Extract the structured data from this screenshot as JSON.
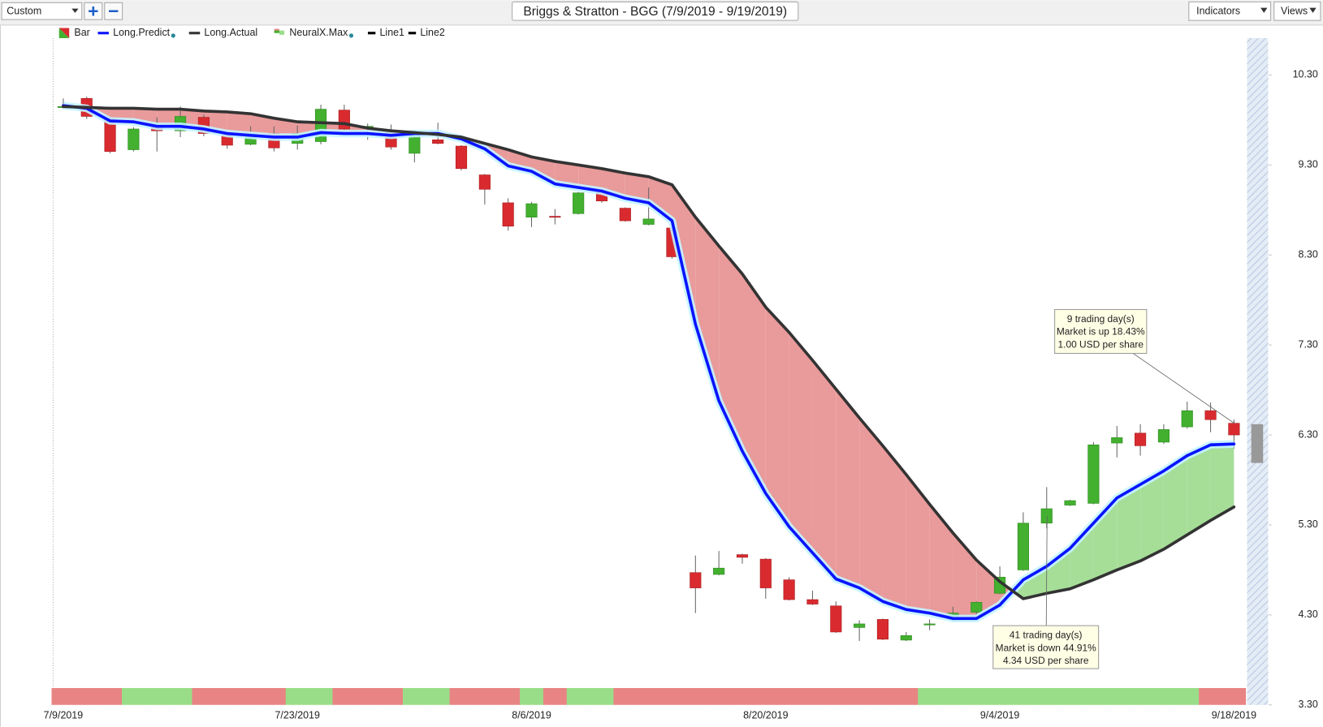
{
  "toolbar": {
    "preset": "Custom",
    "indicators": "Indicators",
    "views": "Views"
  },
  "chart_data": {
    "type": "candlestick",
    "title": "Briggs & Stratton - BGG (7/9/2019 - 9/19/2019)",
    "categories": [
      "7/9/2019",
      null,
      null,
      null,
      null,
      null,
      null,
      null,
      null,
      null,
      "7/23/2019",
      null,
      null,
      null,
      null,
      null,
      null,
      null,
      null,
      null,
      "8/6/2019",
      null,
      null,
      null,
      null,
      null,
      null,
      null,
      null,
      null,
      "8/20/2019",
      null,
      null,
      null,
      null,
      null,
      null,
      null,
      null,
      null,
      "9/4/2019",
      null,
      null,
      null,
      null,
      null,
      null,
      null,
      null,
      null,
      "9/18/2019"
    ],
    "ylim": [
      3.3,
      10.71
    ],
    "yticks": [
      {
        "value": 3.3,
        "label": "3.30"
      },
      {
        "value": 4.3,
        "label": "4.30"
      },
      {
        "value": 5.3,
        "label": "5.30"
      },
      {
        "value": 6.3,
        "label": "6.30"
      },
      {
        "value": 7.3,
        "label": "7.30"
      },
      {
        "value": 8.3,
        "label": "8.30"
      },
      {
        "value": 9.3,
        "label": "9.30"
      },
      {
        "value": 10.3,
        "label": "10.30"
      }
    ],
    "y_axis_side": "right",
    "grid": false,
    "band_fill": {
      "down": "#e99a9a",
      "up": "#a6de98"
    },
    "series": [
      {
        "name": "Bar",
        "type": "candlestick",
        "up_color": "#43b02f",
        "down_color": "#d92b2f",
        "open": [
          9.95,
          10.04,
          9.82,
          9.47,
          9.73,
          9.68,
          9.83,
          9.63,
          9.53,
          9.65,
          9.54,
          9.56,
          9.91,
          9.71,
          9.68,
          9.43,
          9.58,
          9.51,
          9.19,
          8.88,
          8.72,
          8.73,
          8.76,
          9.0,
          8.82,
          8.64,
          8.6,
          4.77,
          4.75,
          4.97,
          4.92,
          4.69,
          4.47,
          4.4,
          4.16,
          4.25,
          4.02,
          4.19,
          4.25,
          4.33,
          4.54,
          4.8,
          5.32,
          5.52,
          5.54,
          6.21,
          6.32,
          6.22,
          6.39,
          6.57,
          6.43
        ],
        "high": [
          10.04,
          10.06,
          9.84,
          9.72,
          9.83,
          9.95,
          9.86,
          9.68,
          9.73,
          9.73,
          9.74,
          9.97,
          9.97,
          9.76,
          9.75,
          9.68,
          9.77,
          9.52,
          9.2,
          8.93,
          8.89,
          8.81,
          9.0,
          9.03,
          8.83,
          9.05,
          8.63,
          4.96,
          5.01,
          4.98,
          4.93,
          4.72,
          4.57,
          4.45,
          4.24,
          4.26,
          4.11,
          4.25,
          4.39,
          4.45,
          4.84,
          5.44,
          5.72,
          5.58,
          6.22,
          6.4,
          6.42,
          6.42,
          6.67,
          6.66,
          6.47
        ],
        "low": [
          9.92,
          9.81,
          9.43,
          9.45,
          9.45,
          9.61,
          9.62,
          9.48,
          9.52,
          9.45,
          9.47,
          9.53,
          9.68,
          9.58,
          9.47,
          9.33,
          9.53,
          9.24,
          8.86,
          8.57,
          8.61,
          8.64,
          8.75,
          8.88,
          8.67,
          8.63,
          8.26,
          4.32,
          4.74,
          4.87,
          4.48,
          4.46,
          4.41,
          4.1,
          4.01,
          4.02,
          4.01,
          4.13,
          4.23,
          4.3,
          4.53,
          4.79,
          5.26,
          5.51,
          5.53,
          6.05,
          6.07,
          6.2,
          6.37,
          6.33,
          6.15
        ],
        "close": [
          9.95,
          9.84,
          9.45,
          9.7,
          9.68,
          9.84,
          9.65,
          9.52,
          9.65,
          9.49,
          9.65,
          9.92,
          9.7,
          9.73,
          9.5,
          9.63,
          9.54,
          9.26,
          9.03,
          8.62,
          8.87,
          8.72,
          8.99,
          8.9,
          8.68,
          8.7,
          8.28,
          4.6,
          4.82,
          4.94,
          4.6,
          4.47,
          4.42,
          4.11,
          4.2,
          4.03,
          4.07,
          4.2,
          4.32,
          4.44,
          4.72,
          5.32,
          5.48,
          5.57,
          6.19,
          6.27,
          6.18,
          6.36,
          6.57,
          6.47,
          6.3
        ]
      },
      {
        "name": "Long.Predict",
        "type": "line",
        "color": "#0a14ff",
        "glow": true,
        "values": [
          9.96,
          9.93,
          9.79,
          9.78,
          9.73,
          9.73,
          9.7,
          9.65,
          9.63,
          9.61,
          9.61,
          9.66,
          9.65,
          9.65,
          9.63,
          9.65,
          9.65,
          9.59,
          9.48,
          9.29,
          9.23,
          9.09,
          9.05,
          9.01,
          8.93,
          8.88,
          8.68,
          7.53,
          6.68,
          6.12,
          5.65,
          5.28,
          4.99,
          4.7,
          4.6,
          4.45,
          4.36,
          4.32,
          4.26,
          4.26,
          4.41,
          4.69,
          4.84,
          5.04,
          5.32,
          5.6,
          5.75,
          5.9,
          6.07,
          6.19,
          6.2
        ]
      },
      {
        "name": "Long.Actual",
        "type": "line",
        "color": "#333333",
        "values": [
          9.95,
          9.94,
          9.93,
          9.93,
          9.92,
          9.92,
          9.9,
          9.89,
          9.87,
          9.82,
          9.78,
          9.77,
          9.76,
          9.71,
          9.68,
          9.66,
          9.64,
          9.61,
          9.54,
          9.47,
          9.39,
          9.34,
          9.3,
          9.26,
          9.21,
          9.17,
          9.08,
          8.72,
          8.4,
          8.09,
          7.72,
          7.44,
          7.13,
          6.81,
          6.49,
          6.18,
          5.86,
          5.53,
          5.21,
          4.91,
          4.67,
          4.48,
          4.54,
          4.59,
          4.69,
          4.8,
          4.9,
          5.03,
          5.19,
          5.35,
          5.5
        ]
      },
      {
        "name": "NeuralX.Max",
        "type": "signal",
        "up_color": "#99dd88",
        "down_color": "#e88484",
        "values": [
          -1,
          -1,
          -1,
          1,
          1,
          1,
          -1,
          -1,
          -1,
          -1,
          1,
          1,
          -1,
          -1,
          -1,
          1,
          1,
          -1,
          -1,
          -1,
          1,
          -1,
          1,
          1,
          -1,
          -1,
          -1,
          -1,
          -1,
          -1,
          -1,
          -1,
          -1,
          -1,
          -1,
          -1,
          -1,
          1,
          1,
          1,
          1,
          1,
          1,
          1,
          1,
          1,
          1,
          1,
          1,
          -1,
          -1
        ]
      },
      {
        "name": "Line1",
        "type": "line",
        "color": "#000000"
      },
      {
        "name": "Line2",
        "type": "line",
        "color": "#000000"
      }
    ],
    "annotations": [
      {
        "lines": [
          "9 trading day(s)",
          "Market is up 18.43%",
          "1.00 USD per share"
        ]
      },
      {
        "lines": [
          "41 trading day(s)",
          "Market is down 44.91%",
          "4.34 USD per share"
        ]
      }
    ]
  }
}
